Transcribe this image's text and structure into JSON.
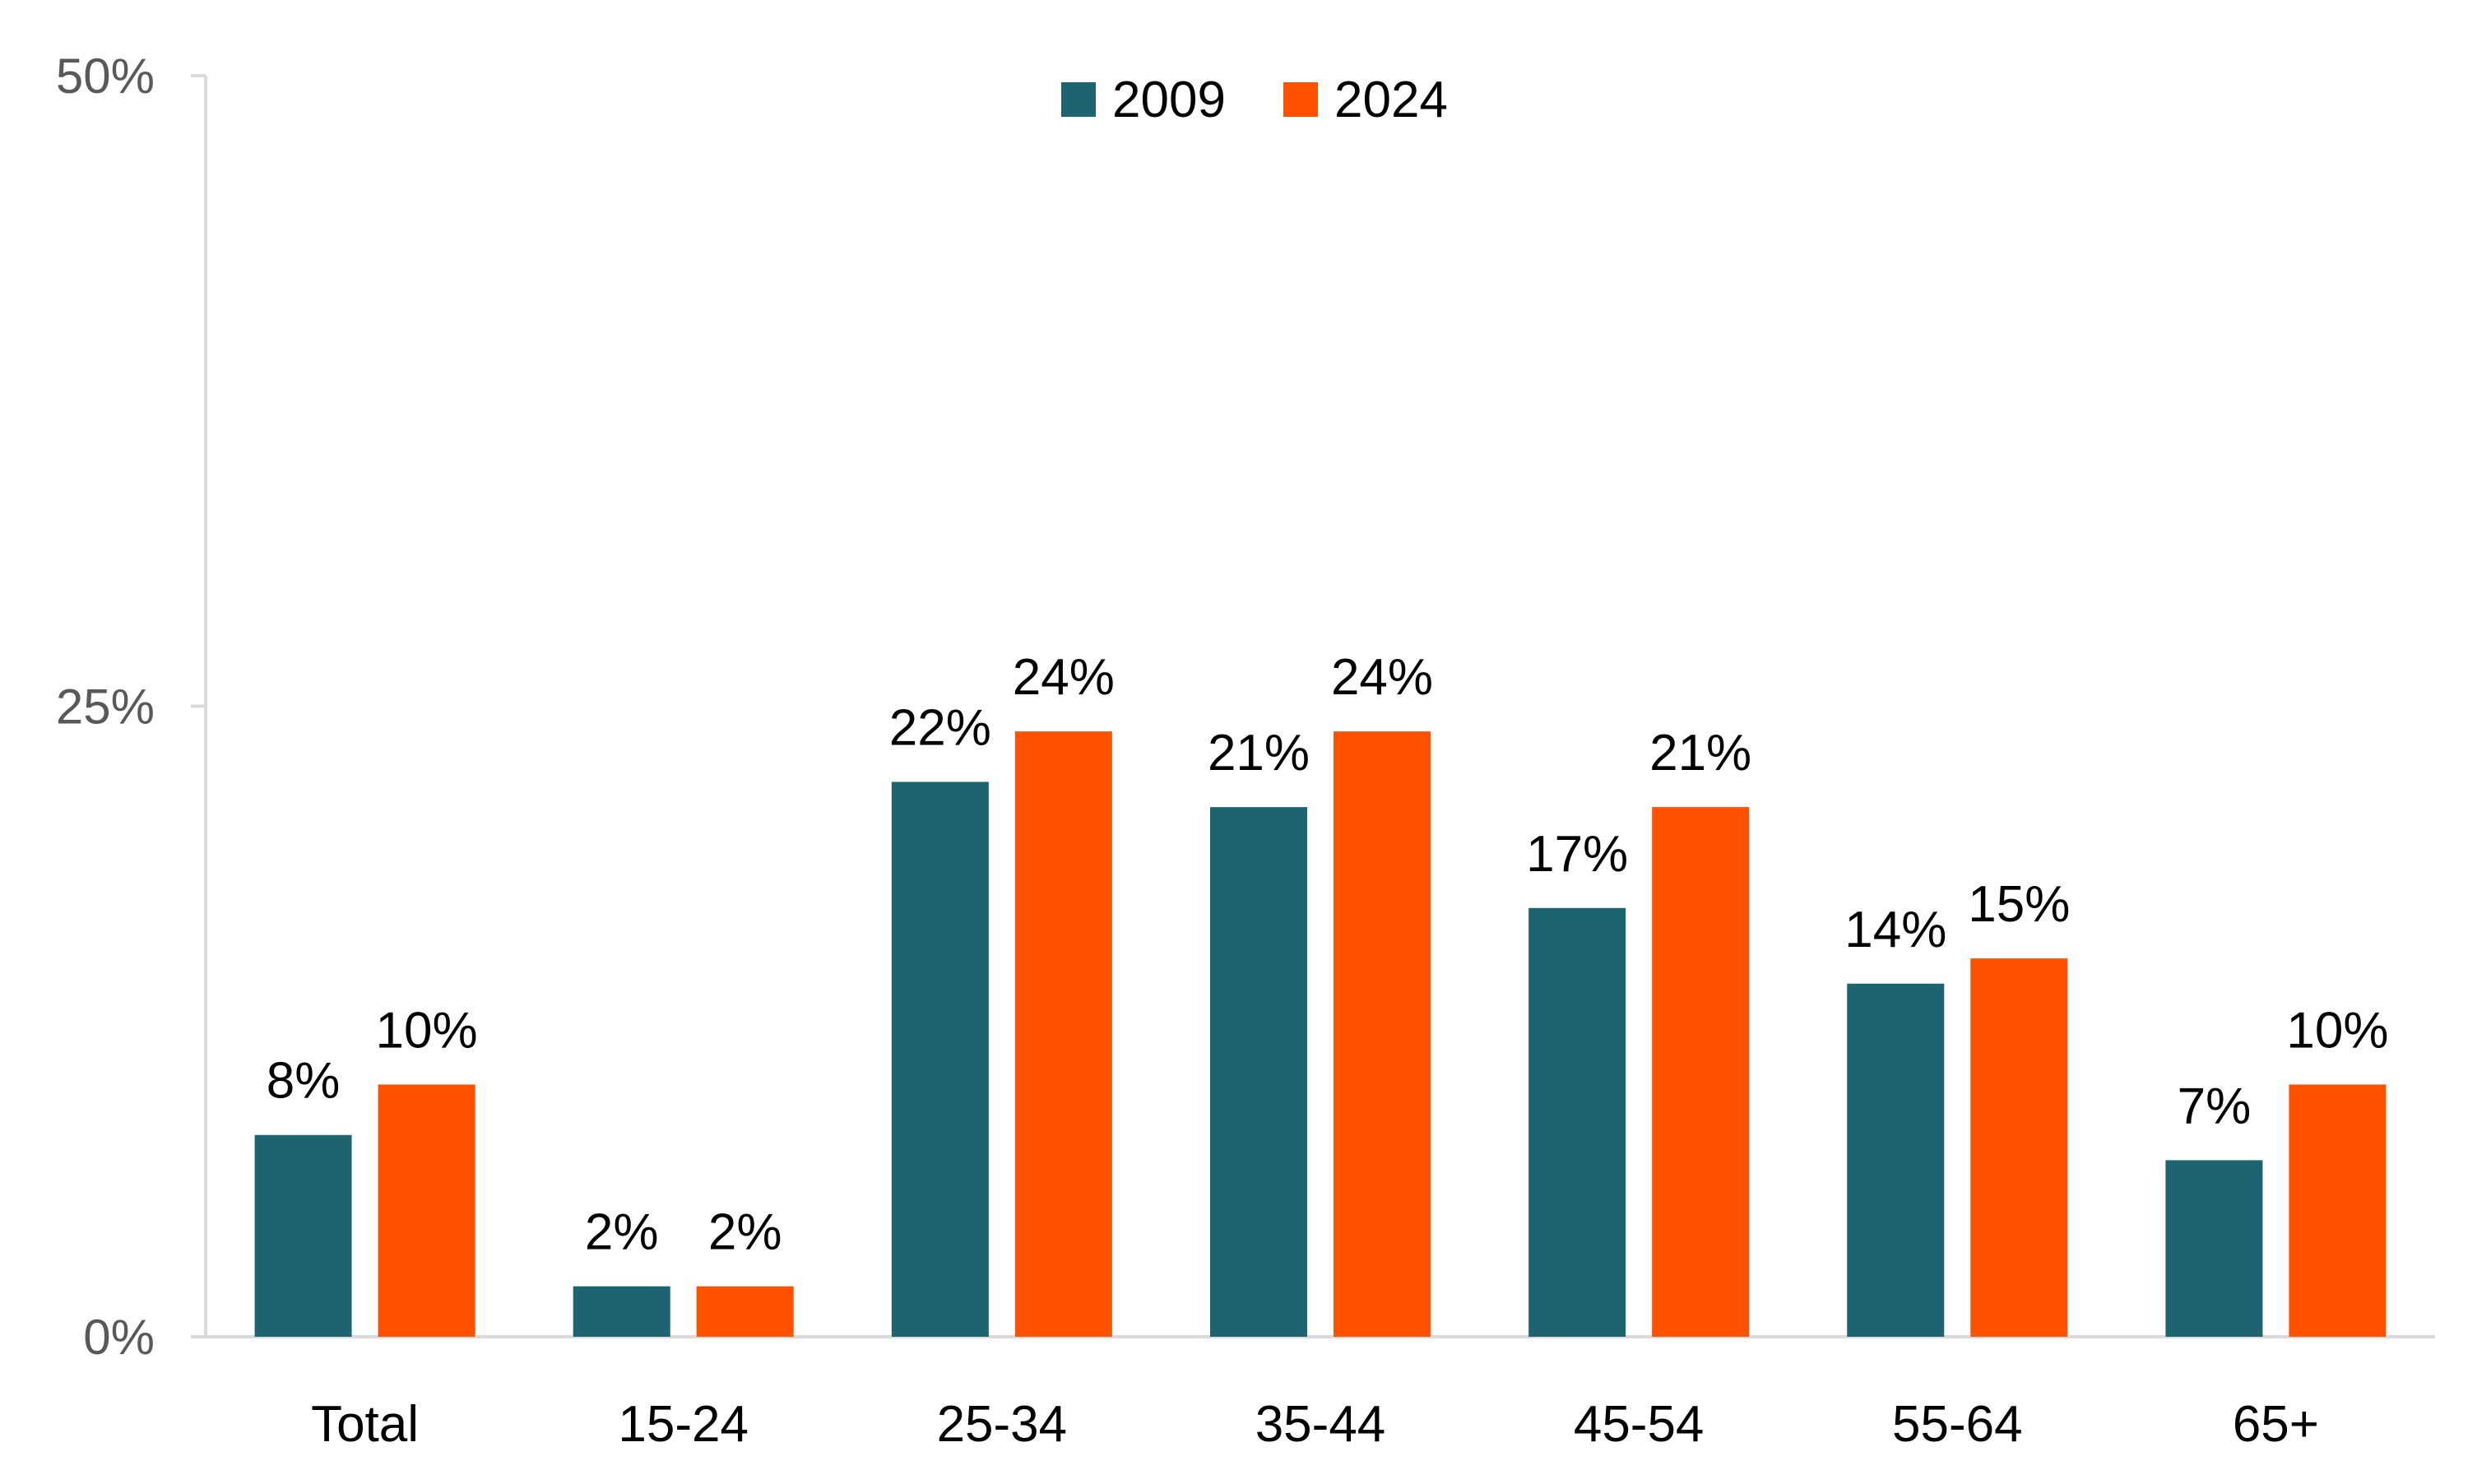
{
  "colors": {
    "series_2009": "#1e6370",
    "series_2024": "#ff5100",
    "axis": "#d9d9d9",
    "tick_text": "#595959",
    "label_text": "#000000"
  },
  "chart_data": {
    "type": "bar",
    "title": "",
    "xlabel": "",
    "ylabel": "",
    "ylim": [
      0,
      50
    ],
    "y_ticks": [
      0,
      25,
      50
    ],
    "y_tick_labels": [
      "0%",
      "25%",
      "50%"
    ],
    "grid": false,
    "legend_position": "top-center",
    "categories": [
      "Total",
      "15-24",
      "25-34",
      "35-44",
      "45-54",
      "55-64",
      "65+"
    ],
    "series": [
      {
        "name": "2009",
        "values": [
          8,
          2,
          22,
          21,
          17,
          14,
          7
        ],
        "labels": [
          "8%",
          "2%",
          "22%",
          "21%",
          "17%",
          "14%",
          "7%"
        ]
      },
      {
        "name": "2024",
        "values": [
          10,
          2,
          24,
          24,
          21,
          15,
          10
        ],
        "labels": [
          "10%",
          "2%",
          "24%",
          "24%",
          "21%",
          "15%",
          "10%"
        ]
      }
    ]
  }
}
